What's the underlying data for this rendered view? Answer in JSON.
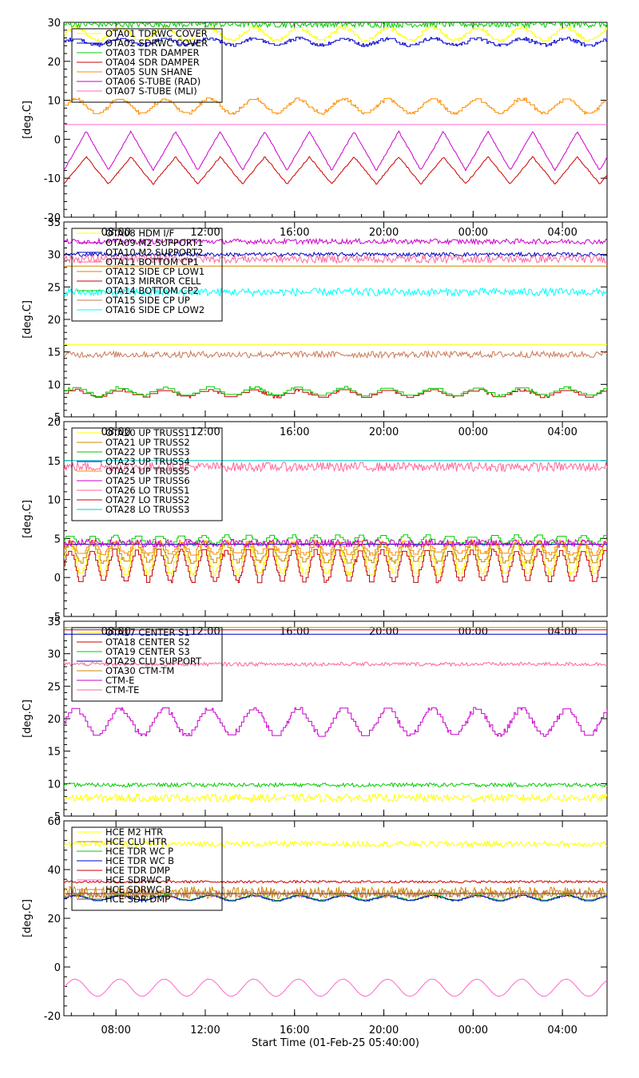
{
  "chart_data": [
    {
      "type": "line",
      "ylabel": "[deg.C]",
      "ylim": [
        -20,
        30
      ],
      "yticks": [
        -20,
        -10,
        0,
        10,
        20,
        30
      ],
      "xticks": [
        "08:00",
        "12:00",
        "16:00",
        "20:00",
        "00:00",
        "04:00"
      ],
      "show_xticklabels": false,
      "legend_position": "top-left",
      "series": [
        {
          "name": "OTA01 TDRWC COVER",
          "color": "#ffff00",
          "style": "cycle",
          "base": 27,
          "amp": 1.6,
          "period": 2.0,
          "noise": 0.6
        },
        {
          "name": "OTA02 SDRWC COVER",
          "color": "#0000cc",
          "style": "cycle",
          "base": 25,
          "amp": 0.8,
          "period": 2.0,
          "noise": 0.7
        },
        {
          "name": "OTA03 TDR DAMPER",
          "color": "#00cc00",
          "style": "noise",
          "base": 29.5,
          "amp": 0,
          "period": 2.0,
          "noise": 0.8
        },
        {
          "name": "OTA04 SDR DAMPER",
          "color": "#cc0000",
          "style": "tri",
          "base": -8,
          "amp": 3.5,
          "period": 2.0,
          "noise": 0.3
        },
        {
          "name": "OTA05 SUN SHANE",
          "color": "#ff8c00",
          "style": "cycle",
          "base": 8.5,
          "amp": 1.8,
          "period": 2.0,
          "noise": 0.5
        },
        {
          "name": "OTA06 S-TUBE (RAD)",
          "color": "#cc00cc",
          "style": "tri",
          "base": -3,
          "amp": 5,
          "period": 2.0,
          "noise": 0.3
        },
        {
          "name": "OTA07 S-TUBE (MLI)",
          "color": "#ff66cc",
          "style": "flat",
          "base": 3.8,
          "amp": 0,
          "period": 2.0,
          "noise": 0.05
        }
      ]
    },
    {
      "type": "line",
      "ylabel": "[deg.C]",
      "ylim": [
        5,
        35
      ],
      "yticks": [
        5,
        10,
        15,
        20,
        25,
        30,
        35
      ],
      "xticks": [
        "08:00",
        "12:00",
        "16:00",
        "20:00",
        "00:00",
        "04:00"
      ],
      "show_xticklabels": true,
      "legend_position": "top-left",
      "series": [
        {
          "name": "OTA08 HDM I/F",
          "color": "#ffff00",
          "style": "flat",
          "base": 16.2,
          "amp": 0,
          "period": 2.0,
          "noise": 0.1
        },
        {
          "name": "OTA09 M2 SUPPORT1",
          "color": "#cc00cc",
          "style": "noise",
          "base": 32,
          "amp": 0,
          "period": 2.0,
          "noise": 0.4
        },
        {
          "name": "OTA10 M2 SUPPORT2",
          "color": "#0000cc",
          "style": "noise",
          "base": 30,
          "amp": 0,
          "period": 2.0,
          "noise": 0.3
        },
        {
          "name": "OTA11 BOTTOM CP1",
          "color": "#ff6699",
          "style": "noise",
          "base": 29.3,
          "amp": 0,
          "period": 2.0,
          "noise": 0.6
        },
        {
          "name": "OTA12 SIDE CP LOW1",
          "color": "#cc8800",
          "style": "flat",
          "base": 28.2,
          "amp": 0,
          "period": 2.0,
          "noise": 0.05
        },
        {
          "name": "OTA13 MIRROR CELL",
          "color": "#cc0000",
          "style": "cycle",
          "base": 8.6,
          "amp": 0.5,
          "period": 2.0,
          "noise": 0.3
        },
        {
          "name": "OTA14 BOTTOM CP2",
          "color": "#00cc00",
          "style": "cycle",
          "base": 8.9,
          "amp": 0.6,
          "period": 2.0,
          "noise": 0.3
        },
        {
          "name": "OTA15 SIDE CP UP",
          "color": "#cc7755",
          "style": "noise",
          "base": 14.6,
          "amp": 0,
          "period": 2.0,
          "noise": 0.5
        },
        {
          "name": "OTA16 SIDE CP LOW2",
          "color": "#00ffff",
          "style": "noise",
          "base": 24.2,
          "amp": 0,
          "period": 2.0,
          "noise": 0.6
        }
      ]
    },
    {
      "type": "line",
      "ylabel": "[deg.C]",
      "ylim": [
        -5,
        20
      ],
      "yticks": [
        -5,
        0,
        5,
        10,
        15,
        20
      ],
      "xticks": [
        "08:00",
        "12:00",
        "16:00",
        "20:00",
        "00:00",
        "04:00"
      ],
      "show_xticklabels": true,
      "legend_position": "top-left",
      "series": [
        {
          "name": "OTA20 UP TRUSS1",
          "color": "#ffff00",
          "style": "cycle",
          "base": 2.5,
          "amp": 2.0,
          "period": 1.0,
          "noise": 0.4
        },
        {
          "name": "OTA21 UP TRUSS2",
          "color": "#cc8800",
          "style": "cycle",
          "base": 3.2,
          "amp": 1.2,
          "period": 1.0,
          "noise": 0.3
        },
        {
          "name": "OTA22 UP TRUSS3",
          "color": "#00cc00",
          "style": "cycle",
          "base": 4.8,
          "amp": 0.6,
          "period": 1.0,
          "noise": 0.2
        },
        {
          "name": "OTA23 UP TRUSS4",
          "color": "#0000cc",
          "style": "flat",
          "base": 4.3,
          "amp": 0,
          "period": 1.0,
          "noise": 0.2
        },
        {
          "name": "OTA24 UP TRUSS5",
          "color": "#ff8c00",
          "style": "cycle",
          "base": 3.8,
          "amp": 0.8,
          "period": 1.0,
          "noise": 0.3
        },
        {
          "name": "OTA25 UP TRUSS6",
          "color": "#cc00cc",
          "style": "noise",
          "base": 4.4,
          "amp": 0,
          "period": 1.0,
          "noise": 0.5
        },
        {
          "name": "OTA26 LO TRUSS1",
          "color": "#ff6699",
          "style": "noise",
          "base": 14.2,
          "amp": 0,
          "period": 1.0,
          "noise": 0.6
        },
        {
          "name": "OTA27 LO TRUSS2",
          "color": "#cc0000",
          "style": "cycle",
          "base": 1.5,
          "amp": 2.0,
          "period": 1.0,
          "noise": 0.3
        },
        {
          "name": "OTA28 LO TRUSS3",
          "color": "#00cccc",
          "style": "flat",
          "base": 15.0,
          "amp": 0,
          "period": 1.0,
          "noise": 0.05
        }
      ]
    },
    {
      "type": "line",
      "ylabel": "[deg.C]",
      "ylim": [
        5,
        35
      ],
      "yticks": [
        5,
        10,
        15,
        20,
        25,
        30,
        35
      ],
      "xticks": [
        "08:00",
        "12:00",
        "16:00",
        "20:00",
        "00:00",
        "04:00"
      ],
      "show_xticklabels": true,
      "legend_position": "top-left",
      "series": [
        {
          "name": "OTA17 CENTER S1",
          "color": "#ffff00",
          "style": "noise",
          "base": 7.8,
          "amp": 0,
          "period": 2.0,
          "noise": 0.6
        },
        {
          "name": "OTA18 CENTER S2",
          "color": "#cc0000",
          "style": "flat",
          "base": 33.7,
          "amp": 0,
          "period": 2.0,
          "noise": 0.05
        },
        {
          "name": "OTA19 CENTER S3",
          "color": "#00cc00",
          "style": "noise",
          "base": 9.8,
          "amp": 0,
          "period": 2.0,
          "noise": 0.3
        },
        {
          "name": "OTA29 CLU SUPPORT",
          "color": "#0000cc",
          "style": "flat",
          "base": 33.0,
          "amp": 0,
          "period": 2.0,
          "noise": 0.05
        },
        {
          "name": "OTA30 CTM-TM",
          "color": "#cc8800",
          "style": "flat",
          "base": 34.0,
          "amp": 0,
          "period": 2.0,
          "noise": 0.05
        },
        {
          "name": "CTM-E",
          "color": "#cc00cc",
          "style": "cycle",
          "base": 19.5,
          "amp": 2.0,
          "period": 2.0,
          "noise": 0.4
        },
        {
          "name": "CTM-TE",
          "color": "#ff6699",
          "style": "noise",
          "base": 28.4,
          "amp": 0,
          "period": 2.0,
          "noise": 0.3
        }
      ]
    },
    {
      "type": "line",
      "ylabel": "[deg.C]",
      "ylim": [
        -20,
        60
      ],
      "yticks": [
        -20,
        0,
        20,
        40,
        60
      ],
      "xticks": [
        "08:00",
        "12:00",
        "16:00",
        "20:00",
        "00:00",
        "04:00"
      ],
      "show_xticklabels": true,
      "legend_position": "top-left",
      "xlabel": "Start Time (01-Feb-25 05:40:00)",
      "series": [
        {
          "name": "HCE M2 HTR",
          "color": "#ffff00",
          "style": "noise",
          "base": 50.5,
          "amp": 0,
          "period": 2.0,
          "noise": 1.2
        },
        {
          "name": "HCE CLU HTR",
          "color": "#cc8800",
          "style": "noise",
          "base": 30.5,
          "amp": 0,
          "period": 2.0,
          "noise": 2.5
        },
        {
          "name": "HCE TDR WC P",
          "color": "#00cc00",
          "style": "cycle",
          "base": 28.5,
          "amp": 1.0,
          "period": 2.0,
          "noise": 0.3
        },
        {
          "name": "HCE TDR WC B",
          "color": "#0000cc",
          "style": "cycle",
          "base": 28.3,
          "amp": 1.0,
          "period": 2.0,
          "noise": 0.3
        },
        {
          "name": "HCE TDR DMP",
          "color": "#cc0000",
          "style": "noise",
          "base": 35.0,
          "amp": 0,
          "period": 2.0,
          "noise": 0.5
        },
        {
          "name": "HCE SDRWC P",
          "color": "#ff66cc",
          "style": "sine",
          "base": -8.5,
          "amp": 3.5,
          "period": 2.0,
          "noise": 0.1
        },
        {
          "name": "HCE SDRWC B",
          "color": "#cc7755",
          "style": "noise",
          "base": 30.0,
          "amp": 0,
          "period": 2.0,
          "noise": 1.5
        },
        {
          "name": "HCE SDR DMP",
          "color": "#555555",
          "style": "flat",
          "base": 30.2,
          "amp": 0,
          "period": 2.0,
          "noise": 0.1
        }
      ]
    }
  ]
}
